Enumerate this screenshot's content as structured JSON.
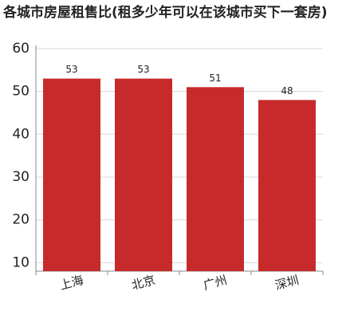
{
  "chart_data": {
    "type": "bar",
    "title": "各城市房屋租售比(租多少年可以在该城市买下一套房)",
    "categories": [
      "上海",
      "北京",
      "广州",
      "深圳"
    ],
    "values": [
      53,
      53,
      51,
      48
    ],
    "color": "#c62a2a",
    "ylim": [
      8,
      60
    ],
    "yticks": [
      10,
      20,
      30,
      40,
      50,
      60
    ],
    "grid": true
  }
}
